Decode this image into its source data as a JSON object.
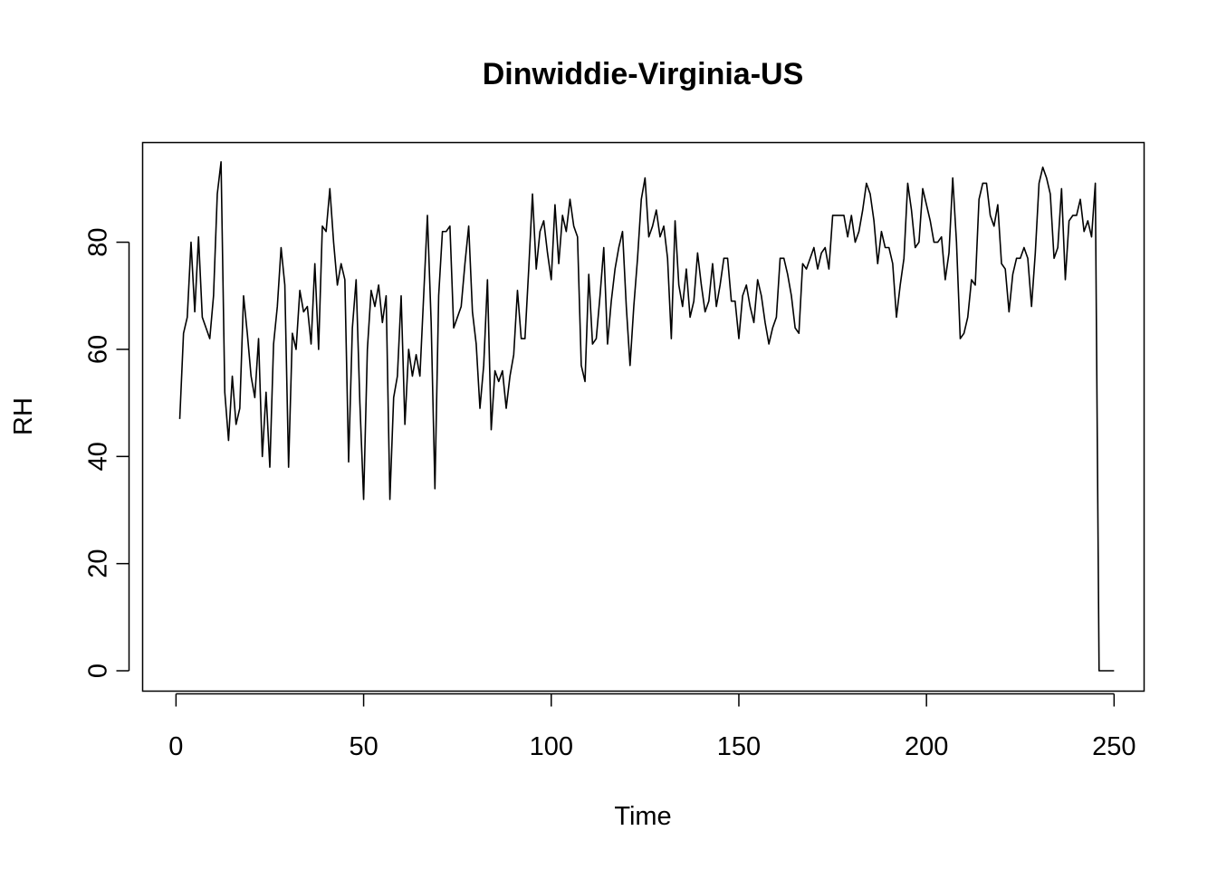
{
  "chart_data": {
    "type": "line",
    "title": "Dinwiddie-Virginia-US",
    "xlabel": "Time",
    "ylabel": "RH",
    "xlim": [
      -8.9,
      258
    ],
    "ylim": [
      -3.8,
      98.6
    ],
    "xticks": [
      0,
      50,
      100,
      150,
      200,
      250
    ],
    "yticks": [
      0,
      20,
      40,
      60,
      80
    ],
    "grid": false,
    "series": [
      {
        "values": [
          47,
          63,
          66,
          80,
          67,
          81,
          66,
          64,
          62,
          70,
          89,
          95,
          52,
          43,
          55,
          46,
          49,
          70,
          63,
          55,
          51,
          62,
          40,
          52,
          38,
          61,
          68,
          79,
          72,
          38,
          63,
          60,
          71,
          67,
          68,
          61,
          76,
          60,
          83,
          82,
          90,
          80,
          72,
          76,
          73,
          39,
          64,
          73,
          50,
          32,
          60,
          71,
          68,
          72,
          65,
          70,
          32,
          51,
          55,
          70,
          46,
          60,
          55,
          59,
          55,
          70,
          85,
          65,
          34,
          70,
          82,
          82,
          83,
          64,
          66,
          68,
          76,
          83,
          67,
          61,
          49,
          57,
          73,
          45,
          56,
          54,
          56,
          49,
          55,
          59,
          71,
          62,
          62,
          75,
          89,
          75,
          82,
          84,
          78,
          73,
          87,
          76,
          85,
          82,
          88,
          83,
          81,
          57,
          54,
          74,
          61,
          62,
          70,
          79,
          61,
          69,
          75,
          79,
          82,
          68,
          57,
          68,
          77,
          88,
          92,
          81,
          83,
          86,
          81,
          83,
          77,
          62,
          84,
          72,
          68,
          75,
          66,
          69,
          78,
          72,
          67,
          69,
          76,
          68,
          72,
          77,
          77,
          69,
          69,
          62,
          70,
          72,
          68,
          65,
          73,
          70,
          65,
          61,
          64,
          66,
          77,
          77,
          74,
          70,
          64,
          63,
          76,
          75,
          77,
          79,
          75,
          78,
          79,
          75,
          85,
          85,
          85,
          85,
          81,
          85,
          80,
          82,
          86,
          91,
          89,
          84,
          76,
          82,
          79,
          79,
          76,
          66,
          72,
          77,
          91,
          86,
          79,
          80,
          90,
          87,
          84,
          80,
          80,
          81,
          73,
          78,
          92,
          80,
          62,
          63,
          66,
          73,
          72,
          88,
          91,
          91,
          85,
          83,
          87,
          76,
          75,
          67,
          74,
          77,
          77,
          79,
          77,
          68,
          78,
          91,
          94,
          92,
          89,
          77,
          79,
          90,
          73,
          84,
          85,
          85,
          88,
          82,
          84,
          81,
          91,
          0,
          0,
          0,
          0,
          0
        ]
      }
    ]
  }
}
